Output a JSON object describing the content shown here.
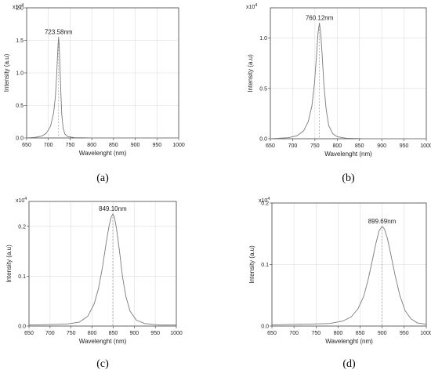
{
  "chart_data": [
    {
      "type": "line",
      "panel_label": "(a)",
      "multiplier_label": "x10",
      "multiplier_exp": "4",
      "xlabel": "Wavelenght (nm)",
      "ylabel": "Intensity (a.u)",
      "xlim": [
        650,
        1000
      ],
      "ylim": [
        0,
        2.0
      ],
      "xticks": [
        650,
        700,
        750,
        800,
        850,
        900,
        950,
        1000
      ],
      "yticks": [
        0.0,
        0.5,
        1.0,
        1.5,
        2.0
      ],
      "ytick_labels": [
        "0.0",
        "0.5",
        "1.0",
        "1.5",
        "2.0"
      ],
      "grid": true,
      "peak": {
        "x": 723.58,
        "y": 1.55,
        "label": "723.58nm"
      },
      "series": [
        {
          "x": [
            650,
            670,
            685,
            695,
            705,
            712,
            716,
            719,
            721,
            722.5,
            723.58,
            725,
            727,
            729,
            731,
            734,
            738,
            745,
            760,
            800,
            900,
            1000
          ],
          "values": [
            0.0,
            0.01,
            0.03,
            0.07,
            0.18,
            0.38,
            0.62,
            0.95,
            1.25,
            1.45,
            1.55,
            1.42,
            1.05,
            0.65,
            0.35,
            0.15,
            0.06,
            0.02,
            0.005,
            0.0,
            0.0,
            0.0
          ]
        }
      ]
    },
    {
      "type": "line",
      "panel_label": "(b)",
      "multiplier_label": "x10",
      "multiplier_exp": "4",
      "xlabel": "Wavelenght (nm)",
      "ylabel": "Intensity (a.u)",
      "xlim": [
        650,
        1000
      ],
      "ylim": [
        0,
        1.3
      ],
      "xticks": [
        650,
        700,
        750,
        800,
        850,
        900,
        950,
        1000
      ],
      "yticks": [
        0.0,
        0.5,
        1.0
      ],
      "ytick_labels": [
        "0.0",
        "0.5",
        "1.0"
      ],
      "grid": true,
      "peak": {
        "x": 760.12,
        "y": 1.15,
        "label": "760.12nm"
      },
      "series": [
        {
          "x": [
            650,
            690,
            710,
            725,
            735,
            743,
            749,
            754,
            757,
            760.12,
            763,
            766,
            770,
            775,
            781,
            790,
            800,
            820,
            860,
            1000
          ],
          "values": [
            0.0,
            0.01,
            0.03,
            0.08,
            0.17,
            0.32,
            0.55,
            0.85,
            1.05,
            1.15,
            1.05,
            0.85,
            0.55,
            0.3,
            0.13,
            0.05,
            0.02,
            0.005,
            0.0,
            0.0
          ]
        }
      ]
    },
    {
      "type": "line",
      "panel_label": "(c)",
      "multiplier_label": "x10",
      "multiplier_exp": "4",
      "xlabel": "Wavelenght (nm)",
      "ylabel": "Intensity (a.u)",
      "xlim": [
        650,
        1000
      ],
      "ylim": [
        0,
        0.25
      ],
      "xticks": [
        650,
        700,
        750,
        800,
        850,
        900,
        950,
        1000
      ],
      "yticks": [
        0.0,
        0.1,
        0.2
      ],
      "ytick_labels": [
        "0.0",
        "0.1",
        "0.2"
      ],
      "grid": true,
      "peak": {
        "x": 849.1,
        "y": 0.225,
        "label": "849.10nm"
      },
      "series": [
        {
          "x": [
            650,
            700,
            740,
            770,
            790,
            805,
            815,
            825,
            833,
            840,
            845,
            849.1,
            853,
            858,
            865,
            872,
            880,
            890,
            905,
            925,
            960,
            1000
          ],
          "values": [
            0.002,
            0.003,
            0.004,
            0.008,
            0.02,
            0.045,
            0.075,
            0.12,
            0.165,
            0.2,
            0.218,
            0.225,
            0.218,
            0.195,
            0.15,
            0.1,
            0.06,
            0.03,
            0.012,
            0.005,
            0.002,
            0.002
          ]
        }
      ]
    },
    {
      "type": "line",
      "panel_label": "(d)",
      "multiplier_label": "x10",
      "multiplier_exp": "4",
      "xlabel": "Wavelenght (nm)",
      "ylabel": "Intensity (a.u)",
      "xlim": [
        650,
        1000
      ],
      "ylim": [
        0,
        0.2
      ],
      "xticks": [
        650,
        700,
        750,
        800,
        850,
        900,
        950,
        1000
      ],
      "yticks": [
        0.0,
        0.1,
        0.2
      ],
      "ytick_labels": [
        "0.0",
        "0.1",
        "0.2"
      ],
      "grid": true,
      "peak": {
        "x": 899.69,
        "y": 0.162,
        "label": "899.69nm"
      },
      "series": [
        {
          "x": [
            650,
            720,
            780,
            810,
            830,
            845,
            858,
            868,
            878,
            886,
            893,
            899.69,
            905,
            912,
            920,
            930,
            940,
            952,
            965,
            980,
            1000
          ],
          "values": [
            0.002,
            0.003,
            0.004,
            0.008,
            0.015,
            0.028,
            0.048,
            0.075,
            0.108,
            0.135,
            0.155,
            0.162,
            0.158,
            0.142,
            0.115,
            0.08,
            0.05,
            0.025,
            0.012,
            0.005,
            0.003
          ]
        }
      ]
    }
  ]
}
